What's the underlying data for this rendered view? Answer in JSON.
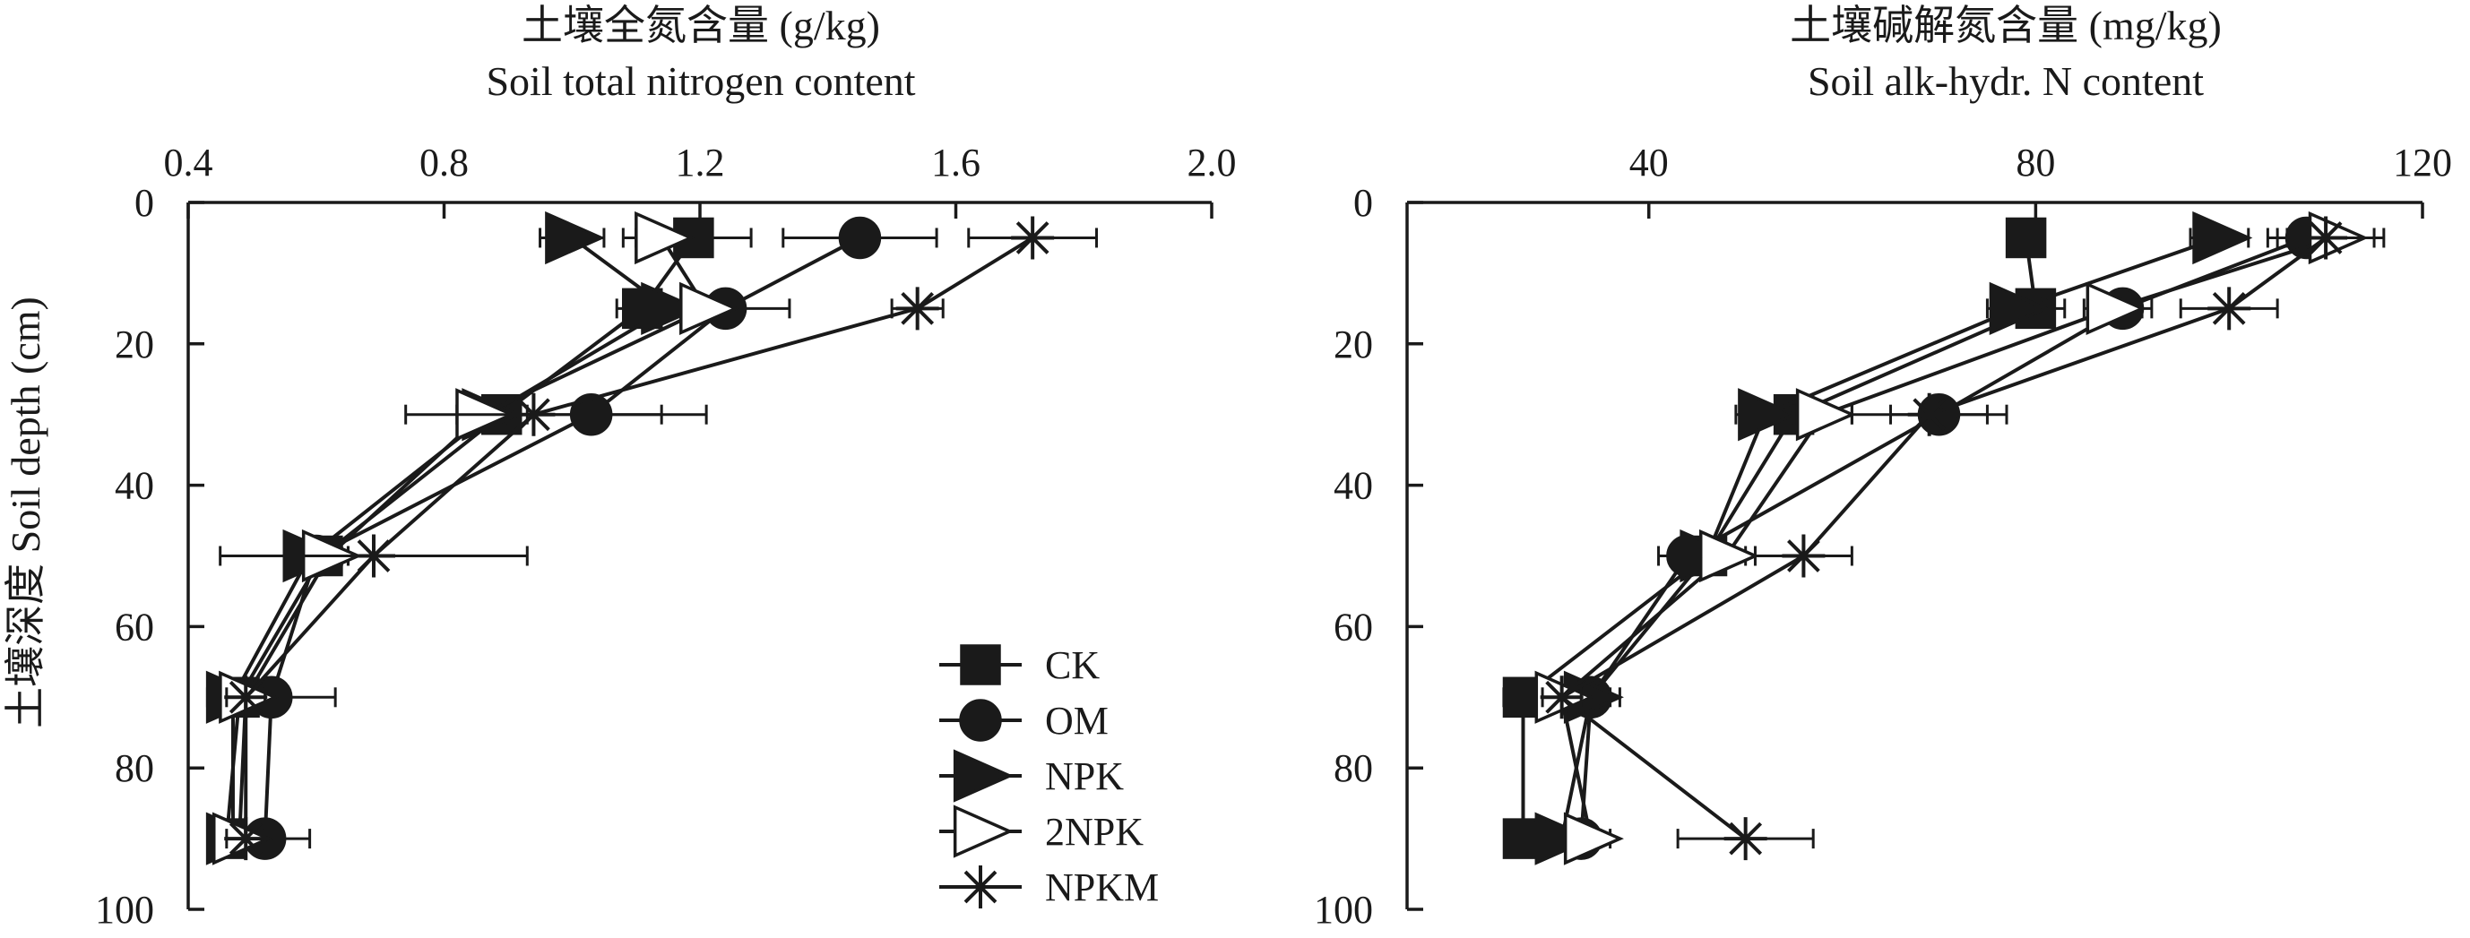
{
  "ylabel_common": "土壤深度 Soil depth (cm)",
  "legend": [
    "CK",
    "OM",
    "NPK",
    "2NPK",
    "NPKM"
  ],
  "colors": {
    "ink": "#1a1a1a",
    "background": "#ffffff"
  },
  "chart_data": [
    {
      "type": "line",
      "title_cn": "土壤全氮含量 (g/kg)",
      "title_en": "Soil total nitrogen content",
      "x_axis_position": "top",
      "xlim": [
        0.4,
        2.0
      ],
      "xticks": [
        0.4,
        0.8,
        1.2,
        1.6,
        2.0
      ],
      "xtick_labels": [
        "0.4",
        "0.8",
        "1.2",
        "1.6",
        "2.0"
      ],
      "ylim": [
        0,
        100
      ],
      "yticks": [
        0,
        20,
        40,
        60,
        80,
        100
      ],
      "ytick_labels": [
        "0",
        "20",
        "40",
        "60",
        "80",
        "100"
      ],
      "ylabel": "土壤深度 Soil depth (cm)",
      "depths": [
        5,
        15,
        30,
        50,
        70,
        90
      ],
      "series": [
        {
          "name": "CK",
          "marker": "square-filled",
          "values": [
            1.19,
            1.11,
            0.89,
            0.61,
            0.48,
            0.46
          ],
          "errors": [
            0.09,
            0.04,
            0.04,
            0.04,
            0.02,
            0.02
          ]
        },
        {
          "name": "OM",
          "marker": "circle-filled",
          "values": [
            1.45,
            1.24,
            1.03,
            0.6,
            0.53,
            0.52
          ],
          "errors": [
            0.12,
            0.1,
            0.18,
            0.04,
            0.1,
            0.07
          ]
        },
        {
          "name": "NPK",
          "marker": "triangle-filled",
          "values": [
            1.0,
            1.15,
            0.87,
            0.59,
            0.47,
            0.47
          ],
          "errors": [
            0.05,
            0.06,
            0.04,
            0.03,
            0.02,
            0.02
          ]
        },
        {
          "name": "2NPK",
          "marker": "triangle-open",
          "values": [
            1.14,
            1.21,
            0.86,
            0.62,
            0.49,
            0.48
          ],
          "errors": [
            0.06,
            0.05,
            0.04,
            0.03,
            0.02,
            0.02
          ]
        },
        {
          "name": "NPKM",
          "marker": "star",
          "values": [
            1.72,
            1.54,
            0.94,
            0.69,
            0.49,
            0.49
          ],
          "errors": [
            0.1,
            0.04,
            0.2,
            0.24,
            0.03,
            0.03
          ]
        }
      ]
    },
    {
      "type": "line",
      "title_cn": "土壤碱解氮含量 (mg/kg)",
      "title_en": "Soil alk-hydr. N content",
      "x_axis_position": "top",
      "xlim": [
        15,
        120
      ],
      "xticks": [
        40,
        80,
        120
      ],
      "xtick_labels": [
        "40",
        "80",
        "120"
      ],
      "ylim": [
        0,
        100
      ],
      "yticks": [
        0,
        20,
        40,
        60,
        80,
        100
      ],
      "ytick_labels": [
        "0",
        "20",
        "40",
        "60",
        "80",
        "100"
      ],
      "ylabel": "",
      "depths": [
        5,
        15,
        30,
        50,
        70,
        90
      ],
      "series": [
        {
          "name": "CK",
          "marker": "square-filled",
          "values": [
            79,
            80,
            55,
            46,
            27,
            27
          ],
          "errors": [
            0.5,
            3,
            2,
            2,
            2,
            1
          ]
        },
        {
          "name": "OM",
          "marker": "circle-filled",
          "values": [
            108,
            89,
            70,
            44,
            34,
            33
          ],
          "errors": [
            4,
            3,
            5,
            3,
            3,
            2
          ]
        },
        {
          "name": "NPK",
          "marker": "triangle-filled",
          "values": [
            99,
            78,
            52,
            46,
            34,
            31
          ],
          "errors": [
            3,
            3,
            3,
            2,
            2,
            2
          ]
        },
        {
          "name": "2NPK",
          "marker": "triangle-open",
          "values": [
            111,
            88,
            58,
            48,
            31,
            34
          ],
          "errors": [
            5,
            3,
            3,
            2,
            2,
            2
          ]
        },
        {
          "name": "NPKM",
          "marker": "star",
          "values": [
            110,
            100,
            69,
            56,
            31,
            50
          ],
          "errors": [
            5,
            5,
            8,
            5,
            2,
            7
          ]
        }
      ]
    }
  ]
}
